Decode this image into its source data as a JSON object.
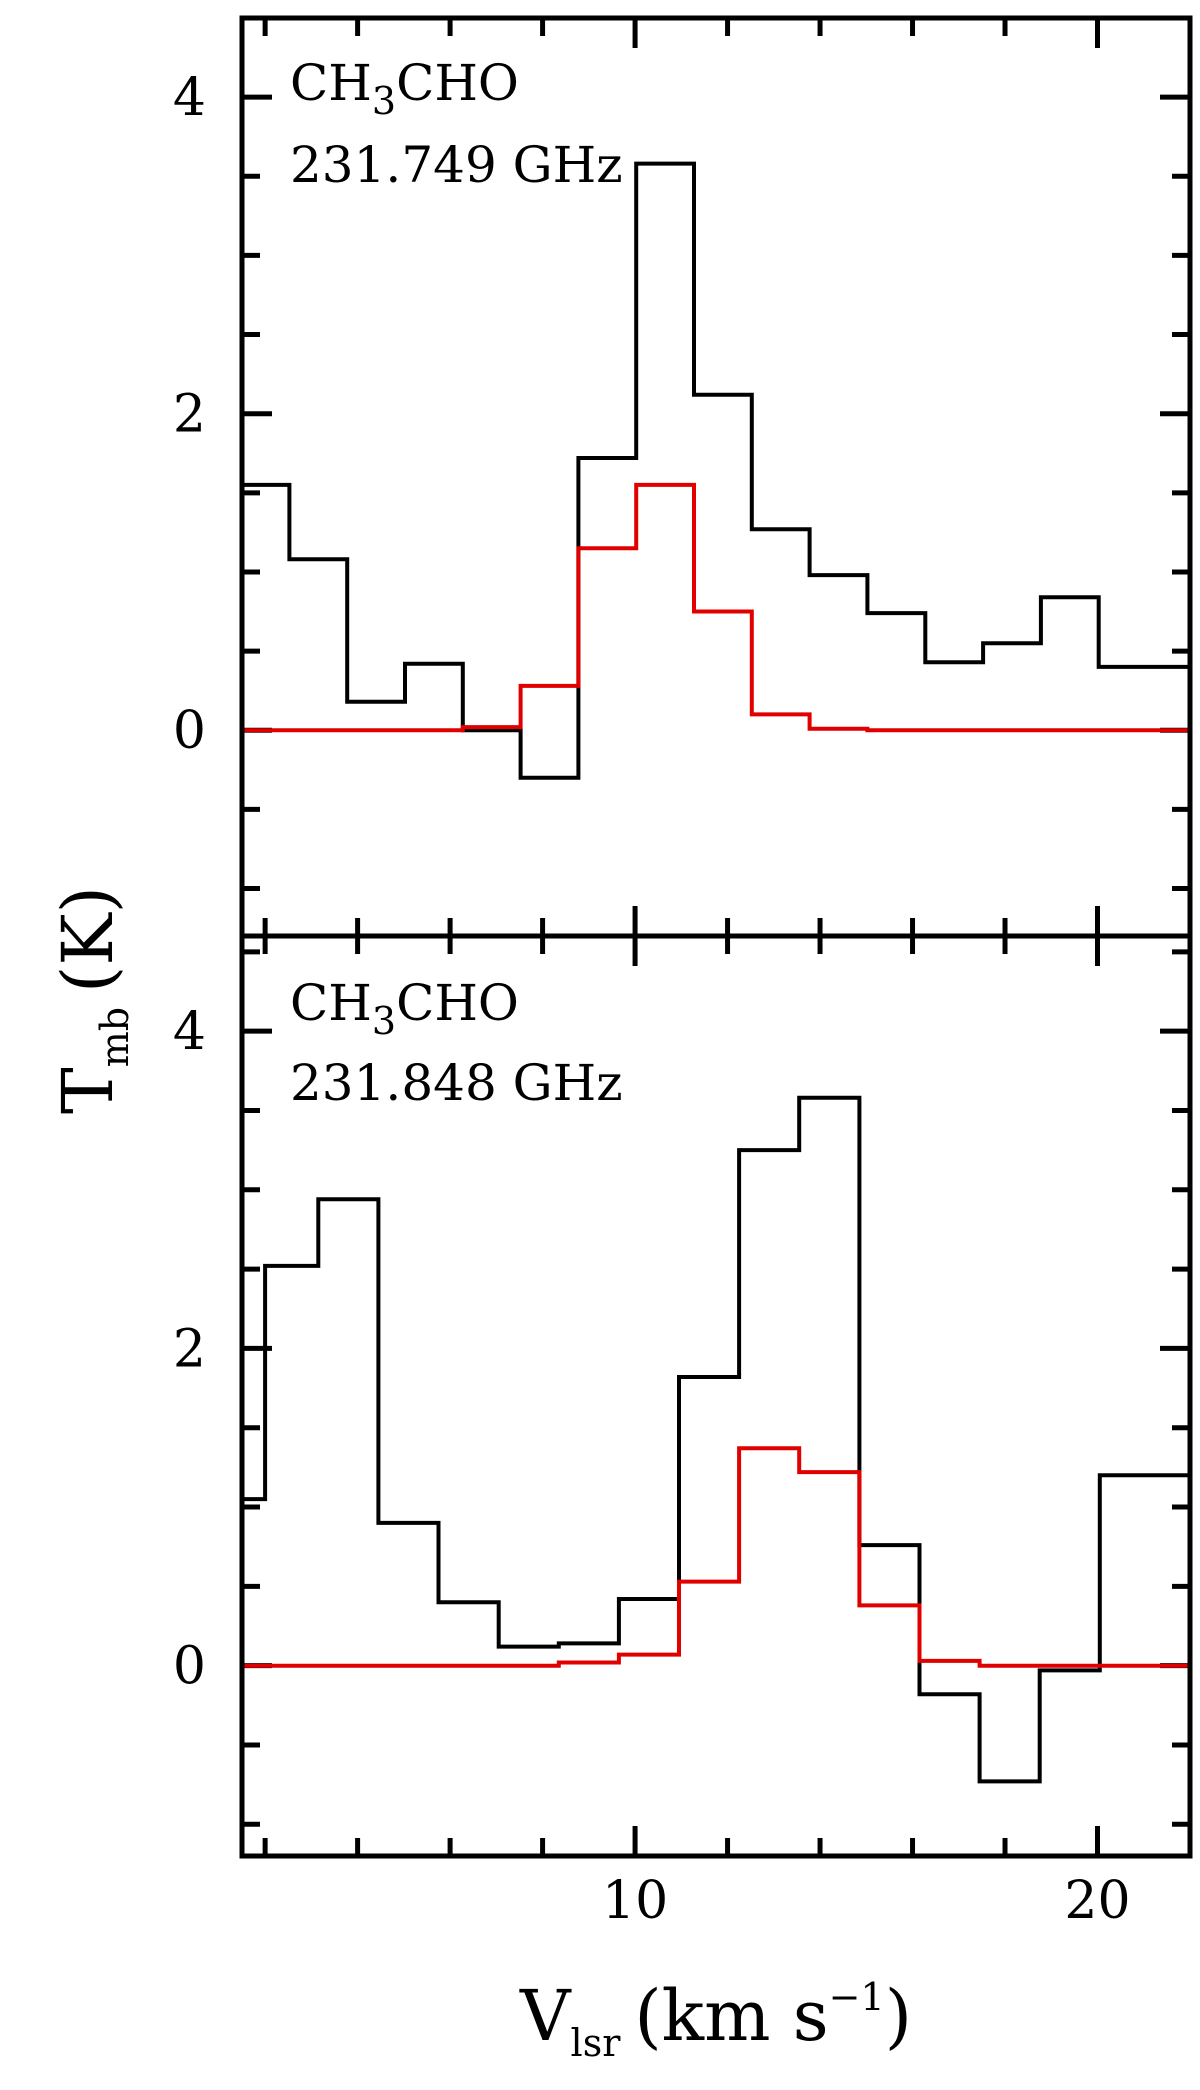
{
  "chart_data": [
    {
      "type": "line",
      "step": true,
      "annotation_molecule": "CH",
      "annotation_molecule_sub": "3",
      "annotation_molecule_rest": "CHO",
      "annotation_frequency": "231.749 GHz",
      "xlim": [
        1.5,
        22.0
      ],
      "ylim": [
        -1.3,
        4.5
      ],
      "y_ticks": [
        0,
        2,
        4
      ],
      "y_tick_labels": [
        "0",
        "2",
        "4"
      ],
      "series": [
        {
          "color": "#000000",
          "x": [
            1.9,
            3.15,
            4.4,
            5.65,
            6.9,
            8.15,
            9.4,
            10.65,
            11.9,
            13.15,
            14.4,
            15.65,
            16.9,
            18.15,
            19.4,
            20.65,
            21.9
          ],
          "y": [
            1.55,
            1.08,
            0.18,
            0.42,
            0.0,
            -0.3,
            1.72,
            3.58,
            2.12,
            1.27,
            0.98,
            0.74,
            0.43,
            0.55,
            0.84,
            0.4,
            0.4
          ]
        },
        {
          "color": "#e00000",
          "x": [
            1.9,
            3.15,
            4.4,
            5.65,
            6.9,
            8.15,
            9.4,
            10.65,
            11.9,
            13.15,
            14.4,
            15.65,
            16.9,
            18.15,
            19.4,
            20.65,
            21.9
          ],
          "y": [
            0.0,
            0.0,
            0.0,
            0.0,
            0.02,
            0.28,
            1.15,
            1.55,
            0.75,
            0.1,
            0.01,
            0.0,
            0.0,
            0.0,
            0.0,
            0.0,
            0.0
          ]
        }
      ]
    },
    {
      "type": "line",
      "step": true,
      "annotation_molecule": "CH",
      "annotation_molecule_sub": "3",
      "annotation_molecule_rest": "CHO",
      "annotation_frequency": "231.848 GHz",
      "xlim": [
        1.5,
        22.0
      ],
      "ylim": [
        -1.2,
        4.6
      ],
      "x_ticks": [
        10,
        20
      ],
      "x_tick_labels": [
        "10",
        "20"
      ],
      "y_ticks": [
        0,
        2,
        4
      ],
      "y_tick_labels": [
        "0",
        "2",
        "4"
      ],
      "series": [
        {
          "color": "#000000",
          "x": [
            1.5,
            2.5,
            3.8,
            5.1,
            6.4,
            7.7,
            9.0,
            10.3,
            11.6,
            12.9,
            14.2,
            15.5,
            16.8,
            18.1,
            19.4,
            20.7,
            22.0
          ],
          "y": [
            1.05,
            2.52,
            2.94,
            0.9,
            0.4,
            0.12,
            0.14,
            0.42,
            1.82,
            3.25,
            3.58,
            0.76,
            -0.18,
            -0.73,
            -0.03,
            1.2,
            1.2
          ]
        },
        {
          "color": "#e00000",
          "x": [
            1.5,
            2.5,
            3.8,
            5.1,
            6.4,
            7.7,
            9.0,
            10.3,
            11.6,
            12.9,
            14.2,
            15.5,
            16.8,
            18.1,
            19.4,
            20.7,
            22.0
          ],
          "y": [
            0.0,
            0.0,
            0.0,
            0.0,
            0.0,
            0.0,
            0.02,
            0.07,
            0.53,
            1.37,
            1.22,
            0.38,
            0.03,
            0.0,
            0.0,
            0.0,
            0.0
          ]
        }
      ]
    }
  ],
  "axes": {
    "ylabel_main": "T",
    "ylabel_sub": "mb",
    "ylabel_unit": "(K)",
    "xlabel_main": "V",
    "xlabel_sub": "lsr",
    "xlabel_unit_pre": "(km s",
    "xlabel_unit_sup": "−1",
    "xlabel_unit_post": ")"
  }
}
